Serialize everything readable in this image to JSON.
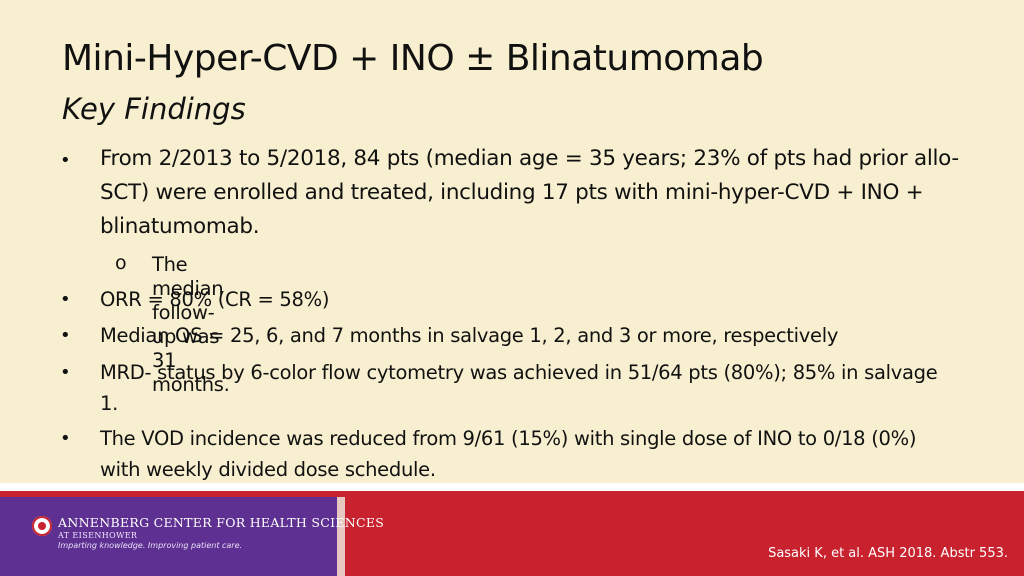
{
  "slide": {
    "title": "Mini-Hyper-CVD + INO ± Blinatumomab",
    "subtitle": "Key Findings"
  },
  "bullets": [
    {
      "marker": "•",
      "text": "From 2/2013 to 5/2018, 84 pts (median age = 35 years; 23% of pts had prior allo-SCT) were enrolled and treated, including 17 pts with mini-hyper-CVD + INO + blinatumomab.",
      "sub": {
        "marker": "o",
        "text": "The median follow-up was 31 months."
      }
    },
    {
      "marker": "•",
      "text": "ORR = 80% (CR = 58%)"
    },
    {
      "marker": "•",
      "text": "Median OS = 25, 6, and 7 months in salvage 1, 2, and 3 or more, respectively"
    },
    {
      "marker": "•",
      "text": "MRD- status by 6-color flow cytometry was achieved in 51/64 pts (80%); 85% in salvage 1."
    },
    {
      "marker": "•",
      "text": "The VOD incidence was reduced from 9/61 (15%) with single dose of INO to 0/18 (0%) with weekly divided dose schedule."
    }
  ],
  "footer": {
    "logo": {
      "name": "ANNENBERG CENTER FOR HEALTH SCIENCES",
      "location": "AT EISENHOWER",
      "tagline": "Imparting knowledge. Improving patient care."
    },
    "citation": "Sasaki K, et al. ASH 2018. Abstr 553."
  },
  "colors": {
    "background": "#f7efcf",
    "footer_red": "#c9222f",
    "footer_purple": "#5e3092"
  }
}
